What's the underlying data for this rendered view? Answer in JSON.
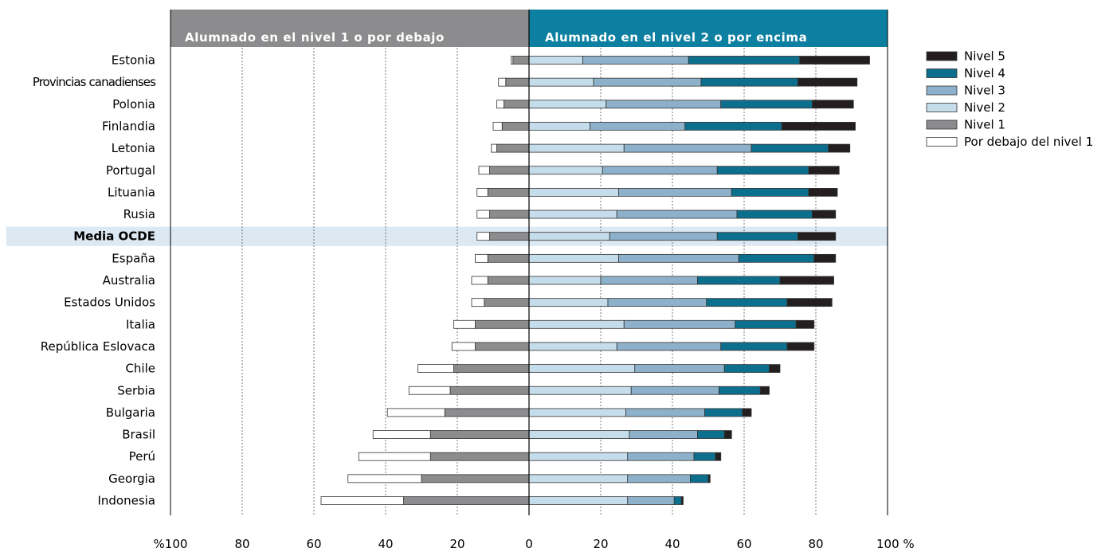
{
  "chart_data": {
    "type": "bar",
    "subtype": "diverging-stacked-horizontal",
    "header_left": "Alumnado en el nivel 1 o por debajo",
    "header_right": "Alumnado en el nivel 2 o por encima",
    "highlight_category": "Media OCDE",
    "x_ticks": [
      "%100",
      "80",
      "60",
      "40",
      "20",
      "0",
      "20",
      "40",
      "60",
      "80",
      "100 %"
    ],
    "xlim_left": [
      0,
      100
    ],
    "xlim_right": [
      0,
      100
    ],
    "grid": "vertical dashed",
    "legend_position": "right",
    "legend": [
      "Nivel 5",
      "Nivel 4",
      "Nivel 3",
      "Nivel 2",
      "Nivel 1",
      "Por debajo del nivel 1"
    ],
    "colors": {
      "below_1": "#ffffff",
      "nivel_1": "#8c8c8e",
      "nivel_2": "#c5dcea",
      "nivel_3": "#8db1ca",
      "nivel_4": "#0d6f8e",
      "nivel_5": "#231f20",
      "header_left": "#8c8c8e",
      "header_right": "#0d7fa0",
      "highlight": "#dce8f2"
    },
    "categories": [
      "Estonia",
      "Provincias canadienses",
      "Polonia",
      "Finlandia",
      "Letonia",
      "Portugal",
      "Lituania",
      "Rusia",
      "Media OCDE",
      "España",
      "Australia",
      "Estados Unidos",
      "Italia",
      "República Eslovaca",
      "Chile",
      "Serbia",
      "Bulgaria",
      "Brasil",
      "Perú",
      "Georgia",
      "Indonesia"
    ],
    "series": [
      {
        "name": "Por debajo del nivel 1",
        "side": "left",
        "values": [
          0.5,
          2,
          2,
          2.5,
          1.5,
          3,
          3,
          3.5,
          3.5,
          3.5,
          4.5,
          3.5,
          6,
          6.5,
          10,
          11.5,
          16,
          16,
          20,
          20.5,
          23
        ]
      },
      {
        "name": "Nivel 1",
        "side": "left",
        "values": [
          4.5,
          6.5,
          7,
          7.5,
          9,
          11,
          11.5,
          11,
          11,
          11.5,
          11.5,
          12.5,
          15,
          15,
          21,
          22,
          23.5,
          27.5,
          27.5,
          30,
          35
        ]
      },
      {
        "name": "Nivel 2",
        "side": "right",
        "values": [
          15,
          18,
          21.5,
          17,
          26.5,
          20.5,
          25,
          24.5,
          22.5,
          25,
          20,
          22,
          26.5,
          24.5,
          29.5,
          28.5,
          27,
          28,
          27.5,
          27.5,
          27.5
        ]
      },
      {
        "name": "Nivel 3",
        "side": "right",
        "values": [
          29.5,
          30,
          32,
          26.5,
          35.5,
          32,
          31.5,
          33.5,
          30,
          33.5,
          27,
          27.5,
          31,
          29,
          25,
          24.5,
          22,
          19,
          18.5,
          17.5,
          13
        ]
      },
      {
        "name": "Nivel 4",
        "side": "right",
        "values": [
          31,
          27,
          25.5,
          27,
          21.5,
          25.5,
          21.5,
          21,
          22.5,
          21,
          23,
          22.5,
          17,
          18.5,
          12.5,
          11.5,
          10.5,
          7.5,
          6,
          5,
          2
        ]
      },
      {
        "name": "Nivel 5",
        "side": "right",
        "values": [
          19.5,
          16.5,
          11.5,
          20.5,
          6,
          8.5,
          8,
          6.5,
          10.5,
          6,
          15,
          12.5,
          5,
          7.5,
          3,
          2.5,
          2.5,
          2,
          1.5,
          0.5,
          0.5
        ]
      }
    ]
  }
}
